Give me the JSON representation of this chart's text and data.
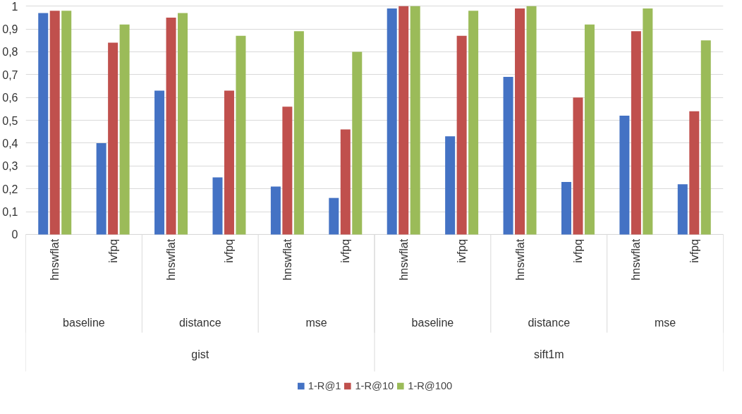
{
  "chart_data": {
    "type": "bar",
    "categories": [
      [
        "gist",
        "baseline",
        "hnswflat"
      ],
      [
        null,
        null,
        "ivfpq"
      ],
      [
        null,
        "distance",
        "hnswflat"
      ],
      [
        null,
        null,
        "ivfpq"
      ],
      [
        null,
        "mse",
        "hnswflat"
      ],
      [
        null,
        null,
        "ivfpq"
      ],
      [
        "sift1m",
        "baseline",
        "hnswflat"
      ],
      [
        null,
        null,
        "ivfpq"
      ],
      [
        null,
        "distance",
        "hnswflat"
      ],
      [
        null,
        null,
        "ivfpq"
      ],
      [
        null,
        "mse",
        "hnswflat"
      ],
      [
        null,
        null,
        "ivfpq"
      ]
    ],
    "series": [
      {
        "name": "1-R@1",
        "color": "#4472c4",
        "values": [
          0.97,
          0.4,
          0.63,
          0.25,
          0.21,
          0.16,
          0.99,
          0.43,
          0.69,
          0.23,
          0.52,
          0.22
        ]
      },
      {
        "name": "1-R@10",
        "color": "#c0504d",
        "values": [
          0.98,
          0.84,
          0.95,
          0.63,
          0.56,
          0.46,
          1.0,
          0.87,
          0.99,
          0.6,
          0.89,
          0.54
        ]
      },
      {
        "name": "1-R@100",
        "color": "#9bbb59",
        "values": [
          0.98,
          0.92,
          0.97,
          0.87,
          0.89,
          0.8,
          1.0,
          0.98,
          1.0,
          0.92,
          0.99,
          0.85
        ]
      }
    ],
    "ylim": [
      0,
      1
    ],
    "yticks": [
      0,
      {
        "value": 0.1,
        "label": "0,1"
      },
      {
        "value": 0.2,
        "label": "0,2"
      },
      {
        "value": 0.3,
        "label": "0,3"
      },
      {
        "value": 0.4,
        "label": "0,4"
      },
      {
        "value": 0.5,
        "label": "0,5"
      },
      {
        "value": 0.6,
        "label": "0,6"
      },
      {
        "value": 0.7,
        "label": "0,7"
      },
      {
        "value": 0.8,
        "label": "0,8"
      },
      {
        "value": 0.9,
        "label": "0,9"
      },
      1
    ],
    "grid": "y",
    "legend": "bottom"
  }
}
